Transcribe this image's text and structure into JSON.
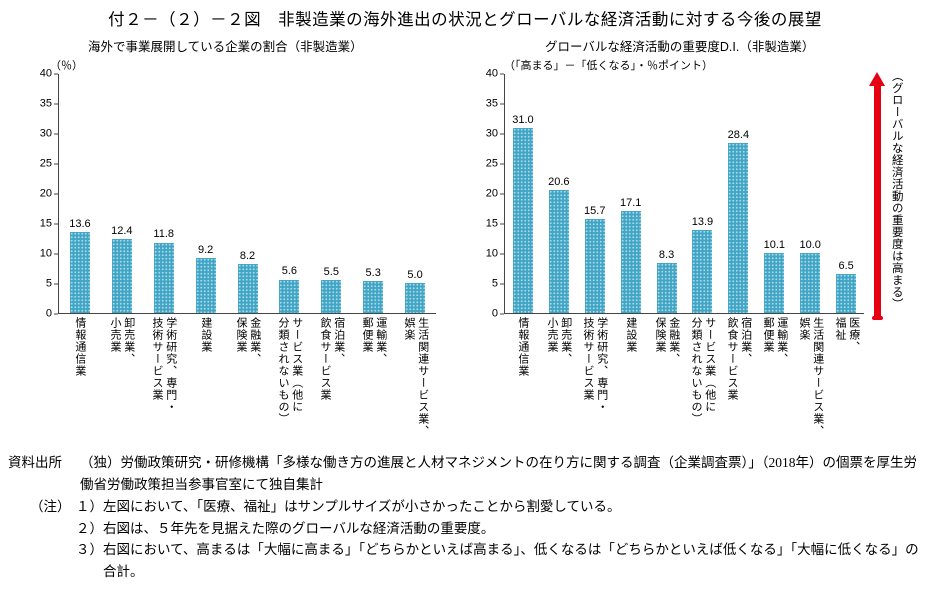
{
  "page_title": "付２－（２）－２図　非製造業の海外進出の状況とグローバルな経済活動に対する今後の展望",
  "colors": {
    "bar": "#41a6c6",
    "axis": "#444444"
  },
  "arrow": {
    "label": "（グローバルな経済活動の重要度は高まる）",
    "color": "#e60012"
  },
  "chart_data": [
    {
      "type": "bar",
      "title": "海外で事業展開している企業の割合（非製造業）",
      "unit_label": "（％）",
      "categories": [
        "情報通信業",
        "卸売業、\n小売業",
        "学術研究、専門・\n技術サービス業",
        "建設業",
        "金融業、\n保険業",
        "サービス業（他に\n分類されないもの）",
        "宿泊業、\n飲食サービス業",
        "運輸業、\n郵便業",
        "生活関連サービス業、\n娯楽"
      ],
      "values": [
        13.6,
        12.4,
        11.8,
        9.2,
        8.2,
        5.6,
        5.5,
        5.3,
        5.0
      ],
      "xlabel": "",
      "ylabel": "％",
      "ylim": [
        0,
        40
      ],
      "ytick_step": 5,
      "grid": false,
      "legend": "none"
    },
    {
      "type": "bar",
      "title": "グローバルな経済活動の重要度D.I.（非製造業）",
      "subtitle": "（「高まる」－「低くなる」・％ポイント）",
      "categories": [
        "情報通信業",
        "卸売業、\n小売業",
        "学術研究、専門・\n技術サービス業",
        "建設業",
        "金融業、\n保険業",
        "サービス業（他に\n分類されないもの）",
        "宿泊業、\n飲食サービス業",
        "運輸業、\n郵便業",
        "生活関連サービス業、\n娯楽",
        "医療、\n福祉"
      ],
      "values": [
        31.0,
        20.6,
        15.7,
        17.1,
        8.3,
        13.9,
        28.4,
        10.1,
        10.0,
        6.5
      ],
      "xlabel": "",
      "ylabel": "％ポイント",
      "ylim": [
        0,
        40
      ],
      "ytick_step": 5,
      "grid": false,
      "legend": "none"
    }
  ],
  "footer": {
    "source_label": "資料出所",
    "source_text": "（独）労働政策研究・研修機構「多様な働き方の進展と人材マネジメントの在り方に関する調査（企業調査票）」（2018年）の個票を厚生労働省労働政策担当参事官室にて独自集計",
    "notes_label": "（注）",
    "notes": [
      "１）左図において、「医療、福祉」はサンプルサイズが小さかったことから割愛している。",
      "２）右図は、５年先を見据えた際のグローバルな経済活動の重要度。",
      "３）右図において、高まるは「大幅に高まる」「どちらかといえば高まる」、低くなるは「どちらかといえば低くなる」「大幅に低くなる」の合計。"
    ]
  }
}
